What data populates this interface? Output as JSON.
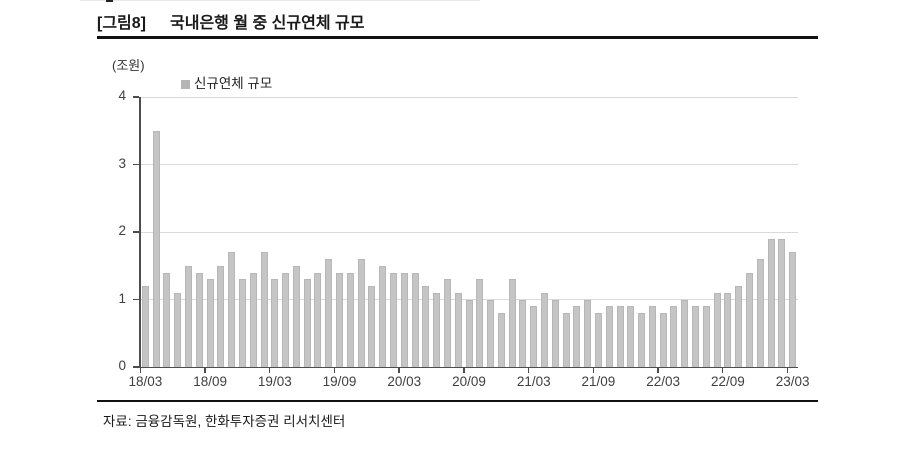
{
  "figure": {
    "tag": "[그림8]",
    "title": "국내은행 월 중 신규연체 규모"
  },
  "source": {
    "text": "자료: 금융감독원, 한화투자증권 리서치센터"
  },
  "chart_data": {
    "type": "bar",
    "unit": "(조원)",
    "legend": "신규연체 규모",
    "ylim": [
      0,
      4
    ],
    "yticks": [
      0,
      1,
      2,
      3,
      4
    ],
    "xtick_labels": [
      "18/03",
      "18/09",
      "19/03",
      "19/09",
      "20/03",
      "20/09",
      "21/03",
      "21/09",
      "22/03",
      "22/09",
      "23/03"
    ],
    "xtick_interval": 6,
    "grid": "horizontal",
    "legend_position": "top-left",
    "categories": [
      "18/03",
      "18/04",
      "18/05",
      "18/06",
      "18/07",
      "18/08",
      "18/09",
      "18/10",
      "18/11",
      "18/12",
      "19/01",
      "19/02",
      "19/03",
      "19/04",
      "19/05",
      "19/06",
      "19/07",
      "19/08",
      "19/09",
      "19/10",
      "19/11",
      "19/12",
      "20/01",
      "20/02",
      "20/03",
      "20/04",
      "20/05",
      "20/06",
      "20/07",
      "20/08",
      "20/09",
      "20/10",
      "20/11",
      "20/12",
      "21/01",
      "21/02",
      "21/03",
      "21/04",
      "21/05",
      "21/06",
      "21/07",
      "21/08",
      "21/09",
      "21/10",
      "21/11",
      "21/12",
      "22/01",
      "22/02",
      "22/03",
      "22/04",
      "22/05",
      "22/06",
      "22/07",
      "22/08",
      "22/09",
      "22/10",
      "22/11",
      "22/12",
      "23/01",
      "23/02",
      "23/03"
    ],
    "values": [
      1.2,
      3.5,
      1.4,
      1.1,
      1.5,
      1.4,
      1.3,
      1.5,
      1.7,
      1.3,
      1.4,
      1.7,
      1.3,
      1.4,
      1.5,
      1.3,
      1.4,
      1.6,
      1.4,
      1.4,
      1.6,
      1.2,
      1.5,
      1.4,
      1.4,
      1.4,
      1.2,
      1.1,
      1.3,
      1.1,
      1.0,
      1.3,
      1.0,
      0.8,
      1.3,
      1.0,
      0.9,
      1.1,
      1.0,
      0.8,
      0.9,
      1.0,
      0.8,
      0.9,
      0.9,
      0.9,
      0.8,
      0.9,
      0.8,
      0.9,
      1.0,
      0.9,
      0.9,
      1.1,
      1.1,
      1.2,
      1.4,
      1.6,
      1.9,
      1.9,
      1.7
    ],
    "colors": {
      "bar": "#c5c5c5",
      "bar_border": "#b7b7b7",
      "legend_marker": "#b5b5b5",
      "gridline": "#d9d9d9",
      "axis": "#4d4d4d"
    }
  }
}
